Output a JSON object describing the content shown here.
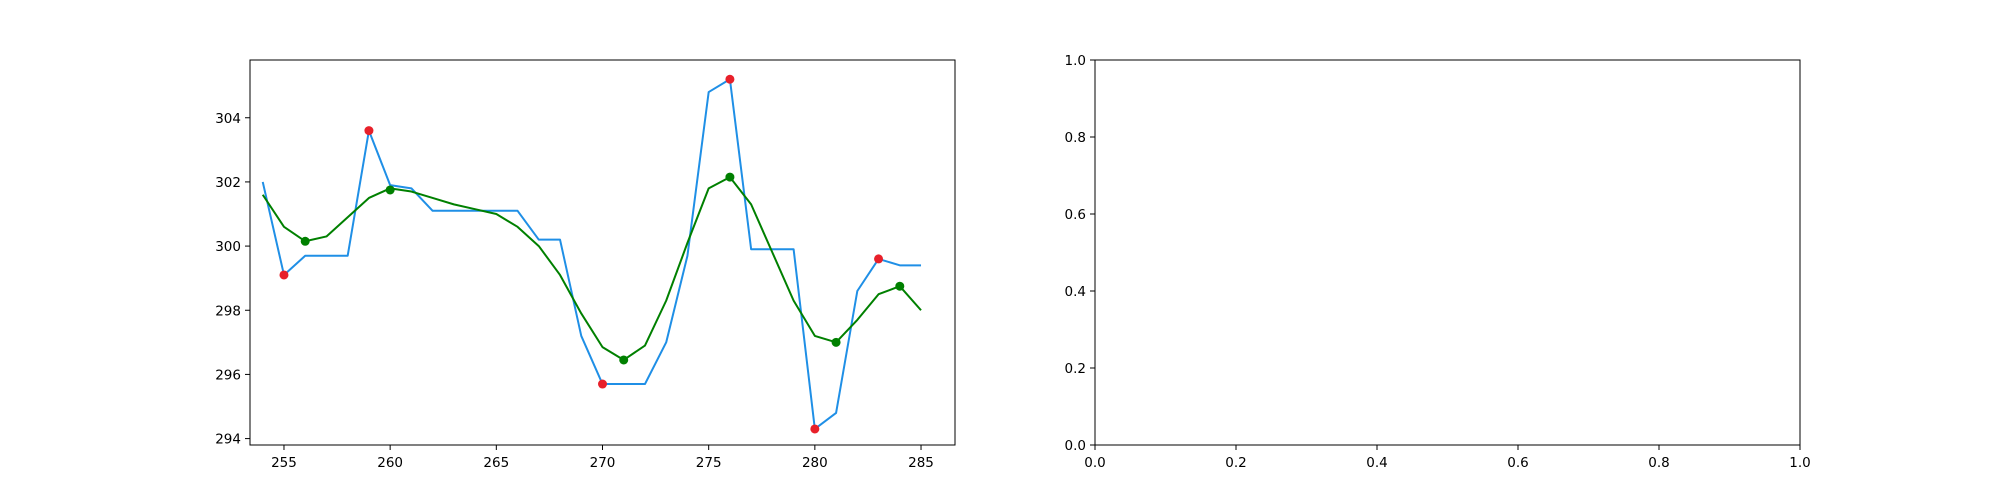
{
  "chart_data": [
    {
      "type": "line",
      "title": "",
      "xlabel": "",
      "ylabel": "",
      "xlim": [
        253.4,
        286.6
      ],
      "ylim": [
        293.8,
        305.8
      ],
      "xticks": [
        255,
        260,
        265,
        270,
        275,
        280,
        285
      ],
      "yticks": [
        294,
        296,
        298,
        300,
        302,
        304
      ],
      "grid": false,
      "series": [
        {
          "role": "raw",
          "color": "#1f8fe6",
          "x": [
            254,
            255,
            256,
            257,
            258,
            259,
            260,
            261,
            262,
            263,
            264,
            265,
            266,
            267,
            268,
            269,
            270,
            271,
            272,
            273,
            274,
            275,
            276,
            277,
            278,
            279,
            280,
            281,
            282,
            283,
            284,
            285
          ],
          "y": [
            302.0,
            299.1,
            299.7,
            299.7,
            299.7,
            303.6,
            301.9,
            301.8,
            301.1,
            301.1,
            301.1,
            301.1,
            301.1,
            300.2,
            300.2,
            297.2,
            295.7,
            295.7,
            295.7,
            297.0,
            299.7,
            304.8,
            305.2,
            299.9,
            299.9,
            299.9,
            294.3,
            294.8,
            298.6,
            299.6,
            299.4,
            299.4
          ]
        },
        {
          "role": "smoothed",
          "color": "#008000",
          "x": [
            254,
            255,
            256,
            257,
            258,
            259,
            260,
            261,
            262,
            263,
            264,
            265,
            266,
            267,
            268,
            269,
            270,
            271,
            272,
            273,
            274,
            275,
            276,
            277,
            278,
            279,
            280,
            281,
            282,
            283,
            284,
            285
          ],
          "y": [
            301.6,
            300.6,
            300.15,
            300.3,
            300.9,
            301.5,
            301.8,
            301.7,
            301.5,
            301.3,
            301.15,
            301.0,
            300.6,
            300.0,
            299.1,
            297.9,
            296.85,
            296.45,
            296.9,
            298.3,
            300.1,
            301.8,
            302.15,
            301.3,
            299.8,
            298.3,
            297.2,
            297.0,
            297.7,
            298.5,
            298.75,
            298.0
          ]
        }
      ],
      "markers": [
        {
          "color": "#e8202a",
          "points": [
            [
              255,
              299.1
            ],
            [
              259,
              303.6
            ],
            [
              270,
              295.7
            ],
            [
              276,
              305.2
            ],
            [
              280,
              294.3
            ],
            [
              283,
              299.6
            ]
          ]
        },
        {
          "color": "#008000",
          "points": [
            [
              256,
              300.15
            ],
            [
              260,
              301.75
            ],
            [
              271,
              296.45
            ],
            [
              276,
              302.15
            ],
            [
              281,
              297.0
            ],
            [
              284,
              298.75
            ]
          ]
        }
      ]
    },
    {
      "type": "line",
      "title": "",
      "xlabel": "",
      "ylabel": "",
      "xlim": [
        0.0,
        1.0
      ],
      "ylim": [
        0.0,
        1.0
      ],
      "xticks": [
        0.0,
        0.2,
        0.4,
        0.6,
        0.8,
        1.0
      ],
      "yticks": [
        0.0,
        0.2,
        0.4,
        0.6,
        0.8,
        1.0
      ],
      "tick_format": "0.0",
      "grid": false,
      "series": []
    }
  ]
}
